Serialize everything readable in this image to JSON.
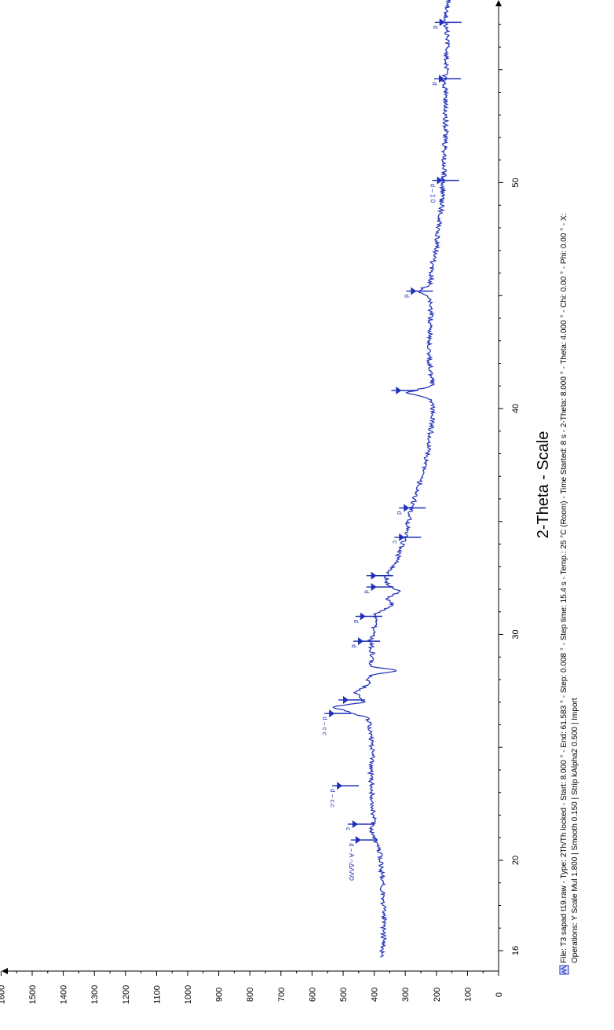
{
  "chart_data": {
    "type": "line",
    "title": "",
    "xlabel": "2-Theta - Scale",
    "ylabel": "",
    "xlim": [
      15.5,
      61.583
    ],
    "ylim": [
      0,
      1600
    ],
    "x_ticks": [
      "16",
      "20",
      "30",
      "40",
      "50"
    ],
    "y_ticks": [
      "0",
      "100",
      "200",
      "300",
      "400",
      "500",
      "600",
      "700",
      "800",
      "900",
      "1000",
      "1100",
      "1200",
      "1300",
      "1400",
      "1500",
      "1600"
    ],
    "color": "#1f2fb8",
    "series": [
      {
        "points": [
          [
            15.7,
            378
          ],
          [
            16.5,
            370
          ],
          [
            17.5,
            368
          ],
          [
            18.5,
            372
          ],
          [
            19.5,
            376
          ],
          [
            20.3,
            382
          ],
          [
            20.8,
            395
          ],
          [
            21.2,
            410
          ],
          [
            21.8,
            402
          ],
          [
            22.6,
            405
          ],
          [
            23.3,
            408
          ],
          [
            24.0,
            412
          ],
          [
            24.5,
            405
          ],
          [
            25.2,
            410
          ],
          [
            25.8,
            412
          ],
          [
            26.3,
            420
          ],
          [
            26.8,
            535
          ],
          [
            27.0,
            430
          ],
          [
            27.4,
            460
          ],
          [
            27.8,
            420
          ],
          [
            28.2,
            415
          ],
          [
            28.4,
            320
          ],
          [
            28.6,
            420
          ],
          [
            29.0,
            405
          ],
          [
            29.7,
            412
          ],
          [
            30.3,
            400
          ],
          [
            30.9,
            395
          ],
          [
            31.3,
            340
          ],
          [
            31.6,
            360
          ],
          [
            31.9,
            320
          ],
          [
            32.2,
            360
          ],
          [
            32.6,
            360
          ],
          [
            33.2,
            330
          ],
          [
            33.8,
            315
          ],
          [
            34.4,
            300
          ],
          [
            35.0,
            290
          ],
          [
            35.6,
            280
          ],
          [
            36.4,
            260
          ],
          [
            37.2,
            245
          ],
          [
            38.0,
            228
          ],
          [
            38.8,
            220
          ],
          [
            39.6,
            212
          ],
          [
            40.4,
            215
          ],
          [
            40.7,
            300
          ],
          [
            41.0,
            212
          ],
          [
            41.8,
            220
          ],
          [
            42.6,
            225
          ],
          [
            43.4,
            220
          ],
          [
            44.2,
            218
          ],
          [
            44.9,
            222
          ],
          [
            45.2,
            262
          ],
          [
            45.5,
            218
          ],
          [
            46.3,
            215
          ],
          [
            47.1,
            200
          ],
          [
            47.9,
            195
          ],
          [
            48.7,
            185
          ],
          [
            49.5,
            182
          ],
          [
            50.0,
            178
          ],
          [
            50.7,
            175
          ],
          [
            51.5,
            175
          ],
          [
            52.3,
            170
          ],
          [
            53.1,
            172
          ],
          [
            53.9,
            168
          ],
          [
            54.4,
            178
          ],
          [
            55.0,
            168
          ],
          [
            55.8,
            166
          ],
          [
            56.5,
            165
          ],
          [
            57.2,
            172
          ],
          [
            57.9,
            163
          ],
          [
            58.7,
            160
          ],
          [
            59.5,
            158
          ],
          [
            60.3,
            155
          ],
          [
            61.0,
            150
          ],
          [
            61.5,
            152
          ]
        ]
      }
    ],
    "peaks": [
      {
        "x": 20.9,
        "y": 460,
        "label": "d – A   ∩ΔΛΛΘ"
      },
      {
        "x": 21.6,
        "y": 470,
        "label": "c"
      },
      {
        "x": 23.3,
        "y": 520,
        "label": "d – c.c"
      },
      {
        "x": 26.5,
        "y": 545,
        "label": "d – c  c"
      },
      {
        "x": 27.1,
        "y": 500,
        "label": ""
      },
      {
        "x": 29.7,
        "y": 452,
        "label": "d"
      },
      {
        "x": 30.8,
        "y": 445,
        "label": "d"
      },
      {
        "x": 32.1,
        "y": 410,
        "label": "d"
      },
      {
        "x": 32.6,
        "y": 410,
        "label": ""
      },
      {
        "x": 34.3,
        "y": 320,
        "label": "c"
      },
      {
        "x": 35.6,
        "y": 305,
        "label": "d"
      },
      {
        "x": 40.8,
        "y": 330,
        "label": ""
      },
      {
        "x": 45.2,
        "y": 282,
        "label": "d"
      },
      {
        "x": 50.1,
        "y": 198,
        "label": "d – 1 0"
      },
      {
        "x": 54.6,
        "y": 192,
        "label": "d"
      },
      {
        "x": 57.1,
        "y": 190,
        "label": "d"
      },
      {
        "x": 60.5,
        "y": 180,
        "label": "c"
      }
    ],
    "grid": false
  },
  "footer": {
    "line1": "File: T3 sapad t19.raw - Type: 2Th/Th locked - Start: 8.000 ° - End: 61.583 ° - Step: 0.008 ° - Step time: 15.4 s - Temp.: 25 °C (Room) - Time Started: 8 s - 2-Theta: 8.000 ° - Theta: 4.000 ° - Chi: 0.00 ° - Phi: 0.00 ° - X:",
    "line2": "Operations: Y Scale Mul 1.800 | Smooth 0.150 | Strip kAlpha2 0.500 | Import"
  }
}
